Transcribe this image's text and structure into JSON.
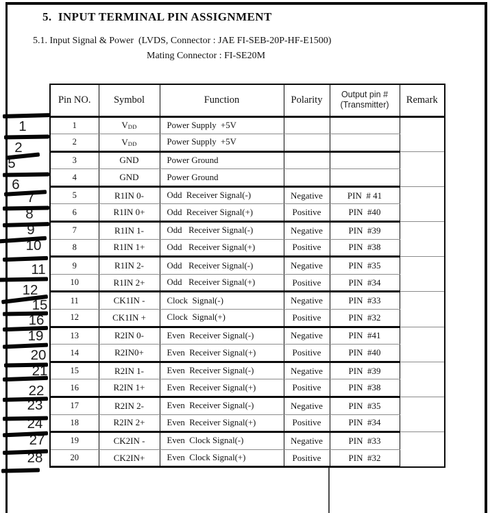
{
  "colors": {
    "ink": "#0a0a0a",
    "thin_row_line": "#8a8a8a",
    "background": "#ffffff"
  },
  "page": {
    "section_title": "5.  INPUT TERMINAL PIN ASSIGNMENT",
    "subtitle_line1": "5.1. Input Signal & Power  (LVDS, Connector : JAE FI-SEB-20P-HF-E1500)",
    "subtitle_line2": "Mating Connector : FI-SE20M"
  },
  "table": {
    "headers": {
      "pin_no": "Pin NO.",
      "symbol": "Symbol",
      "function": "Function",
      "polarity": "Polarity",
      "output_pin_line1": "Output pin #",
      "output_pin_line2": "(Transmitter)",
      "remark": "Remark"
    },
    "rows": [
      {
        "pin": "1",
        "symbol": "V",
        "symbol_sub": "DD",
        "function": "Power Supply  +5V",
        "polarity": "",
        "output": "",
        "remark": ""
      },
      {
        "pin": "2",
        "symbol": "V",
        "symbol_sub": "DD",
        "function": "Power Supply  +5V",
        "polarity": "",
        "output": ""
      },
      {
        "pin": "3",
        "symbol": "GND",
        "function": "Power Ground",
        "polarity": "",
        "output": "",
        "remark": ""
      },
      {
        "pin": "4",
        "symbol": "GND",
        "function": "Power Ground",
        "polarity": "",
        "output": ""
      },
      {
        "pin": "5",
        "symbol": "R1IN 0-",
        "function": "Odd  Receiver Signal(-)",
        "polarity": "Negative",
        "output": "PIN  # 41",
        "remark": ""
      },
      {
        "pin": "6",
        "symbol": "R1IN 0+",
        "function": "Odd  Receiver Signal(+)",
        "polarity": "Positive",
        "output": "PIN  #40"
      },
      {
        "pin": "7",
        "symbol": "R1IN 1-",
        "function": "Odd   Receiver Signal(-)",
        "polarity": "Negative",
        "output": "PIN  #39",
        "remark": ""
      },
      {
        "pin": "8",
        "symbol": "R1IN 1+",
        "function": "Odd   Receiver Signal(+)",
        "polarity": "Positive",
        "output": "PIN  #38"
      },
      {
        "pin": "9",
        "symbol": "R1IN 2-",
        "function": "Odd   Receiver Signal(-)",
        "polarity": "Negative",
        "output": "PIN  #35",
        "remark": ""
      },
      {
        "pin": "10",
        "symbol": "R1IN 2+",
        "function": "Odd   Receiver Signal(+)",
        "polarity": "Positive",
        "output": "PIN  #34"
      },
      {
        "pin": "11",
        "symbol": "CK1IN -",
        "function": "Clock  Signal(-)",
        "polarity": "Negative",
        "output": "PIN  #33",
        "remark": ""
      },
      {
        "pin": "12",
        "symbol": "CK1IN +",
        "function": "Clock  Signal(+)",
        "polarity": "Positive",
        "output": "PIN  #32"
      },
      {
        "pin": "13",
        "symbol": "R2IN 0-",
        "function": "Even  Receiver Signal(-)",
        "polarity": "Negative",
        "output": "PIN  #41",
        "remark": ""
      },
      {
        "pin": "14",
        "symbol": "R2IN0+",
        "function": "Even  Receiver Signal(+)",
        "polarity": "Positive",
        "output": "PIN  #40"
      },
      {
        "pin": "15",
        "symbol": "R2IN 1-",
        "function": "Even  Receiver Signal(-)",
        "polarity": "Negative",
        "output": "PIN  #39",
        "remark": ""
      },
      {
        "pin": "16",
        "symbol": "R2IN 1+",
        "function": "Even  Receiver Signal(+)",
        "polarity": "Positive",
        "output": "PIN  #38"
      },
      {
        "pin": "17",
        "symbol": "R2IN 2-",
        "function": "Even  Receiver Signal(-)",
        "polarity": "Negative",
        "output": "PIN  #35",
        "remark": ""
      },
      {
        "pin": "18",
        "symbol": "R2IN 2+",
        "function": "Even  Receiver Signal(+)",
        "polarity": "Positive",
        "output": "PIN  #34"
      },
      {
        "pin": "19",
        "symbol": "CK2IN -",
        "function": "Even  Clock Signal(-)",
        "polarity": "Negative",
        "output": "PIN  #33",
        "remark": ""
      },
      {
        "pin": "20",
        "symbol": "CK2IN+",
        "function": "Even  Clock Signal(+)",
        "polarity": "Positive",
        "output": "PIN  #32"
      }
    ]
  },
  "annotations": {
    "crossed_out_numbers": [
      "1",
      "2",
      "5",
      "6",
      "7",
      "8",
      "9",
      "10",
      "11",
      "12",
      "15",
      "16",
      "19",
      "20",
      "21",
      "22",
      "23",
      "24",
      "27",
      "28"
    ]
  }
}
